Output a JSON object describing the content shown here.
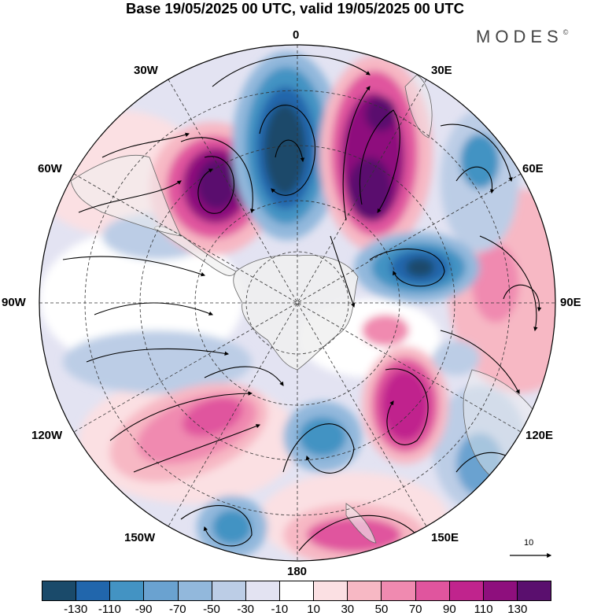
{
  "title": "Base 19/05/2025 00 UTC, valid 19/05/2025 00 UTC",
  "brand": {
    "name": "MODES",
    "mark": "©"
  },
  "map": {
    "projection": "south-polar-stereographic",
    "longitude_labels": [
      "0",
      "30E",
      "60E",
      "90E",
      "120E",
      "150E",
      "180",
      "150W",
      "120W",
      "90W",
      "60W",
      "30W"
    ],
    "field": "wind anomaly (shaded) with streamlines",
    "colors": {
      "land": "#f0f0f0",
      "coast": "#666666",
      "grid": "#333333"
    }
  },
  "vector_reference": {
    "value": "10"
  },
  "colorbar": {
    "colors": [
      "#1a4a6a",
      "#2166ac",
      "#4393c3",
      "#6aa2d0",
      "#92b8dc",
      "#bccde6",
      "#e3e3f2",
      "#ffffff",
      "#fbe0e3",
      "#f7b8c4",
      "#f08ab0",
      "#e0559e",
      "#c0248d",
      "#8e0f7d",
      "#5a0f6e"
    ],
    "tick_labels": [
      "-130",
      "-110",
      "-90",
      "-70",
      "-50",
      "-30",
      "-10",
      "10",
      "30",
      "50",
      "70",
      "90",
      "110",
      "130"
    ]
  }
}
